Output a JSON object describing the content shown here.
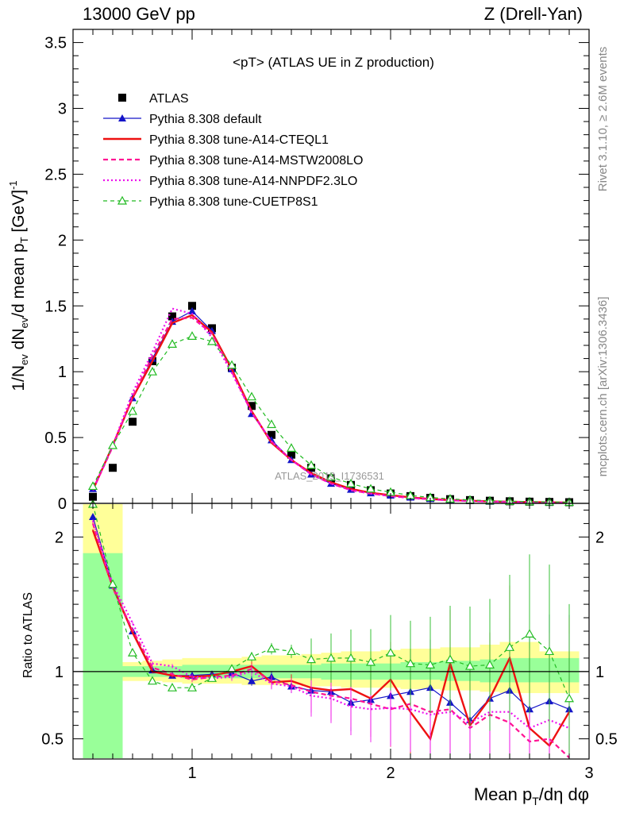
{
  "header": {
    "left": "13000 GeV pp",
    "right": "Z (Drell-Yan)"
  },
  "side_text": {
    "rivet": "Rivet 3.1.10, ≥ 2.6M events",
    "mcplots": "mcplots.cern.ch [arXiv:1306.3436]"
  },
  "colors": {
    "atlas": "#000000",
    "default": "#1414c8",
    "cteql1": "#ee1111",
    "mstw": "#ff1493",
    "nnpdf": "#ee11ee",
    "cuetp8s1": "#22bb22",
    "band_inner": "#99ff99",
    "band_outer": "#ffff99"
  },
  "chart_data": [
    {
      "type": "line",
      "title": "<pT> (ATLAS UE in Z production)",
      "watermark": "ATLAS_2019_I1736531",
      "ylabel": "1/N_ev dN_ev/d mean p_T [GeV]^-1",
      "xlim": [
        0.4,
        3.0
      ],
      "ylim": [
        0,
        3.6
      ],
      "yticks": [
        "0",
        "0.5",
        "1",
        "1.5",
        "2",
        "2.5",
        "3",
        "3.5"
      ],
      "x": [
        0.5,
        0.6,
        0.7,
        0.8,
        0.9,
        1.0,
        1.1,
        1.2,
        1.3,
        1.4,
        1.5,
        1.6,
        1.7,
        1.8,
        1.9,
        2.0,
        2.1,
        2.2,
        2.3,
        2.4,
        2.5,
        2.6,
        2.7,
        2.8,
        2.9
      ],
      "series": [
        {
          "name": "ATLAS",
          "key": "atlas",
          "values": [
            0.05,
            0.27,
            0.62,
            1.08,
            1.42,
            1.5,
            1.33,
            1.03,
            0.74,
            0.52,
            0.37,
            0.27,
            0.19,
            0.14,
            0.1,
            0.075,
            0.055,
            0.042,
            0.032,
            0.025,
            0.02,
            0.016,
            0.013,
            0.011,
            0.009
          ]
        },
        {
          "name": "Pythia 8.308 default",
          "key": "default",
          "values": [
            0.11,
            0.44,
            0.8,
            1.1,
            1.38,
            1.46,
            1.31,
            1.02,
            0.68,
            0.48,
            0.33,
            0.22,
            0.15,
            0.105,
            0.078,
            0.06,
            0.045,
            0.034,
            0.026,
            0.02,
            0.015,
            0.012,
            0.01,
            0.008,
            0.006
          ]
        },
        {
          "name": "Pythia 8.308 tune-A14-CTEQL1",
          "key": "cteql1",
          "values": [
            0.1,
            0.44,
            0.8,
            1.08,
            1.37,
            1.43,
            1.3,
            1.02,
            0.7,
            0.46,
            0.33,
            0.23,
            0.16,
            0.11,
            0.08,
            0.062,
            0.046,
            0.033,
            0.025,
            0.02,
            0.015,
            0.012,
            0.01,
            0.008,
            0.006
          ]
        },
        {
          "name": "Pythia 8.308 tune-A14-MSTW2008LO",
          "key": "mstw",
          "values": [
            0.1,
            0.43,
            0.81,
            1.12,
            1.4,
            1.41,
            1.29,
            1.0,
            0.69,
            0.47,
            0.33,
            0.22,
            0.15,
            0.1,
            0.075,
            0.055,
            0.042,
            0.031,
            0.023,
            0.018,
            0.014,
            0.011,
            0.008,
            0.006,
            0.005
          ]
        },
        {
          "name": "Pythia 8.308 tune-A14-NNPDF2.3LO",
          "key": "nnpdf",
          "values": [
            0.1,
            0.44,
            0.84,
            1.15,
            1.48,
            1.44,
            1.26,
            0.99,
            0.69,
            0.47,
            0.33,
            0.22,
            0.15,
            0.1,
            0.074,
            0.054,
            0.04,
            0.03,
            0.022,
            0.017,
            0.013,
            0.01,
            0.008,
            0.006,
            0.005
          ]
        },
        {
          "name": "Pythia 8.308 tune-CUETP8S1",
          "key": "cuetp8s1",
          "values": [
            0.13,
            0.44,
            0.7,
            1.0,
            1.21,
            1.27,
            1.23,
            1.05,
            0.81,
            0.6,
            0.42,
            0.29,
            0.2,
            0.15,
            0.11,
            0.085,
            0.06,
            0.045,
            0.034,
            0.026,
            0.02,
            0.016,
            0.013,
            0.011,
            0.009
          ]
        }
      ],
      "legend_placement": "top-left"
    },
    {
      "type": "line",
      "ylabel": "Ratio to ATLAS",
      "xlabel": "Mean p_T/dη dφ",
      "xlim": [
        0.4,
        3.0
      ],
      "ylim": [
        0.35,
        2.25
      ],
      "xticks": [
        "1",
        "2",
        "3"
      ],
      "yticks": [
        "0.5",
        "1",
        "2"
      ],
      "reference": 1.0,
      "x": [
        0.5,
        0.6,
        0.7,
        0.8,
        0.9,
        1.0,
        1.1,
        1.2,
        1.3,
        1.4,
        1.5,
        1.6,
        1.7,
        1.8,
        1.9,
        2.0,
        2.1,
        2.2,
        2.3,
        2.4,
        2.5,
        2.6,
        2.7,
        2.8,
        2.9
      ],
      "band_edges": [
        0.45,
        0.55,
        0.65,
        0.75,
        0.85,
        0.95,
        1.05,
        1.15,
        1.25,
        1.35,
        1.45,
        1.55,
        1.65,
        1.75,
        1.85,
        1.95,
        2.05,
        2.15,
        2.25,
        2.35,
        2.45,
        2.55,
        2.65,
        2.75,
        2.85,
        2.95
      ],
      "band_inner": [
        [
          0.35,
          1.88
        ],
        [
          0.35,
          1.88
        ],
        [
          0.96,
          1.04
        ],
        [
          0.96,
          1.04
        ],
        [
          0.96,
          1.04
        ],
        [
          0.95,
          1.05
        ],
        [
          0.95,
          1.05
        ],
        [
          0.95,
          1.05
        ],
        [
          0.95,
          1.05
        ],
        [
          0.95,
          1.05
        ],
        [
          0.95,
          1.05
        ],
        [
          0.95,
          1.05
        ],
        [
          0.94,
          1.06
        ],
        [
          0.94,
          1.06
        ],
        [
          0.94,
          1.06
        ],
        [
          0.94,
          1.06
        ],
        [
          0.94,
          1.07
        ],
        [
          0.94,
          1.07
        ],
        [
          0.93,
          1.08
        ],
        [
          0.93,
          1.08
        ],
        [
          0.92,
          1.09
        ],
        [
          0.92,
          1.1
        ],
        [
          0.92,
          1.1
        ],
        [
          0.92,
          1.1
        ],
        [
          0.92,
          1.1
        ]
      ],
      "band_outer": [
        [
          0.35,
          2.25
        ],
        [
          0.35,
          2.25
        ],
        [
          0.93,
          1.07
        ],
        [
          0.93,
          1.08
        ],
        [
          0.92,
          1.09
        ],
        [
          0.91,
          1.1
        ],
        [
          0.91,
          1.1
        ],
        [
          0.91,
          1.1
        ],
        [
          0.9,
          1.11
        ],
        [
          0.9,
          1.12
        ],
        [
          0.9,
          1.12
        ],
        [
          0.89,
          1.13
        ],
        [
          0.89,
          1.14
        ],
        [
          0.88,
          1.15
        ],
        [
          0.88,
          1.15
        ],
        [
          0.88,
          1.16
        ],
        [
          0.87,
          1.17
        ],
        [
          0.87,
          1.17
        ],
        [
          0.86,
          1.18
        ],
        [
          0.86,
          1.18
        ],
        [
          0.85,
          1.2
        ],
        [
          0.84,
          1.22
        ],
        [
          0.84,
          1.22
        ],
        [
          0.84,
          1.15
        ],
        [
          0.84,
          1.15
        ]
      ],
      "series": [
        {
          "name": "Pythia 8.308 default",
          "key": "default",
          "values": [
            2.15,
            1.64,
            1.3,
            1.01,
            0.97,
            0.97,
            0.98,
            0.99,
            0.93,
            0.96,
            0.89,
            0.86,
            0.85,
            0.77,
            0.79,
            0.82,
            0.85,
            0.88,
            0.77,
            0.64,
            0.8,
            0.86,
            0.72,
            0.78,
            0.72
          ]
        },
        {
          "name": "Pythia 8.308 tune-A14-CTEQL1",
          "key": "cteql1",
          "values": [
            2.05,
            1.63,
            1.29,
            1.0,
            0.97,
            0.96,
            0.97,
            1.0,
            1.04,
            0.92,
            0.93,
            0.88,
            0.86,
            0.87,
            0.8,
            0.94,
            0.7,
            0.5,
            1.06,
            0.6,
            0.8,
            1.1,
            0.58,
            0.45,
            0.7
          ]
        },
        {
          "name": "Pythia 8.308 tune-A14-MSTW2008LO",
          "key": "mstw",
          "values": [
            2.1,
            1.62,
            1.31,
            1.03,
            0.98,
            0.94,
            0.96,
            0.97,
            1.02,
            0.93,
            0.9,
            0.85,
            0.82,
            0.8,
            0.76,
            0.72,
            0.76,
            0.7,
            0.72,
            0.58,
            0.68,
            0.62,
            0.48,
            0.5,
            0.36
          ]
        },
        {
          "name": "Pythia 8.308 tune-A14-NNPDF2.3LO",
          "key": "nnpdf",
          "values": [
            2.12,
            1.65,
            1.36,
            1.06,
            1.04,
            0.96,
            0.95,
            0.96,
            1.0,
            0.91,
            0.89,
            0.82,
            0.8,
            0.74,
            0.72,
            0.73,
            0.72,
            0.68,
            0.7,
            0.62,
            0.7,
            0.7,
            0.58,
            0.64,
            0.58
          ]
        },
        {
          "name": "Pythia 8.308 tune-CUETP8S1",
          "key": "cuetp8s1",
          "values": [
            2.3,
            1.65,
            1.14,
            0.93,
            0.88,
            0.88,
            0.95,
            1.02,
            1.11,
            1.17,
            1.15,
            1.09,
            1.1,
            1.1,
            1.07,
            1.14,
            1.06,
            1.05,
            1.09,
            1.04,
            1.05,
            1.18,
            1.28,
            1.15,
            0.8
          ]
        }
      ]
    }
  ]
}
